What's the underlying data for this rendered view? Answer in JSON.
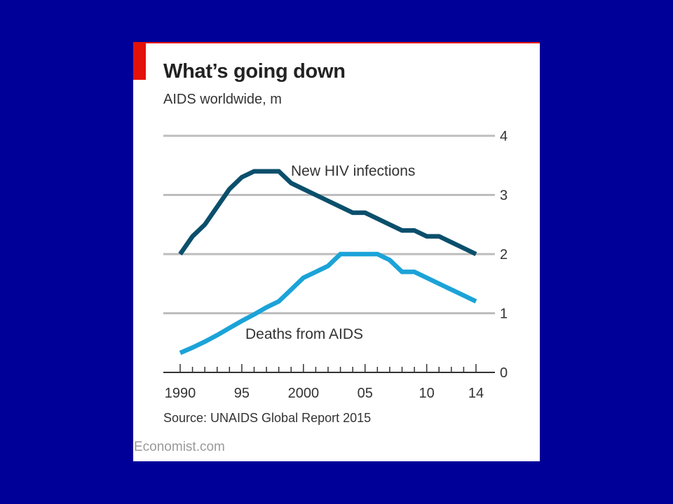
{
  "page": {
    "background": "#000099"
  },
  "card": {
    "title": "What’s going down",
    "subtitle": "AIDS worldwide, m",
    "source": "Source: UNAIDS Global Report 2015",
    "credit": "Economist.com",
    "accent_color": "#e3120b"
  },
  "chart_data": {
    "type": "line",
    "title": "What’s going down",
    "subtitle": "AIDS worldwide, m",
    "x": [
      1990,
      1991,
      1992,
      1993,
      1994,
      1995,
      1996,
      1997,
      1998,
      1999,
      2000,
      2001,
      2002,
      2003,
      2004,
      2005,
      2006,
      2007,
      2008,
      2009,
      2010,
      2011,
      2012,
      2013,
      2014
    ],
    "xticks": [
      1990,
      1995,
      2000,
      2005,
      2010,
      2014
    ],
    "xtick_labels": [
      "1990",
      "95",
      "2000",
      "05",
      "10",
      "14"
    ],
    "xlim": [
      1990,
      2014
    ],
    "ylim": [
      0,
      4
    ],
    "yticks": [
      0,
      1,
      2,
      3,
      4
    ],
    "ytick_labels": [
      "0",
      "1",
      "2",
      "3",
      "4"
    ],
    "y_axis_side": "right",
    "grid": true,
    "series": [
      {
        "name": "New HIV infections",
        "color": "#0b4f6c",
        "values": [
          2.0,
          2.3,
          2.5,
          2.8,
          3.1,
          3.3,
          3.4,
          3.4,
          3.4,
          3.2,
          3.1,
          3.0,
          2.9,
          2.8,
          2.7,
          2.7,
          2.6,
          2.5,
          2.4,
          2.4,
          2.3,
          2.3,
          2.2,
          2.1,
          2.0
        ]
      },
      {
        "name": "Deaths from AIDS",
        "color": "#1ba3d8",
        "values": [
          0.33,
          0.42,
          0.52,
          0.63,
          0.75,
          0.87,
          0.98,
          1.1,
          1.2,
          1.4,
          1.6,
          1.7,
          1.8,
          2.0,
          2.0,
          2.0,
          2.0,
          1.9,
          1.7,
          1.7,
          1.6,
          1.5,
          1.4,
          1.3,
          1.2
        ]
      }
    ]
  }
}
